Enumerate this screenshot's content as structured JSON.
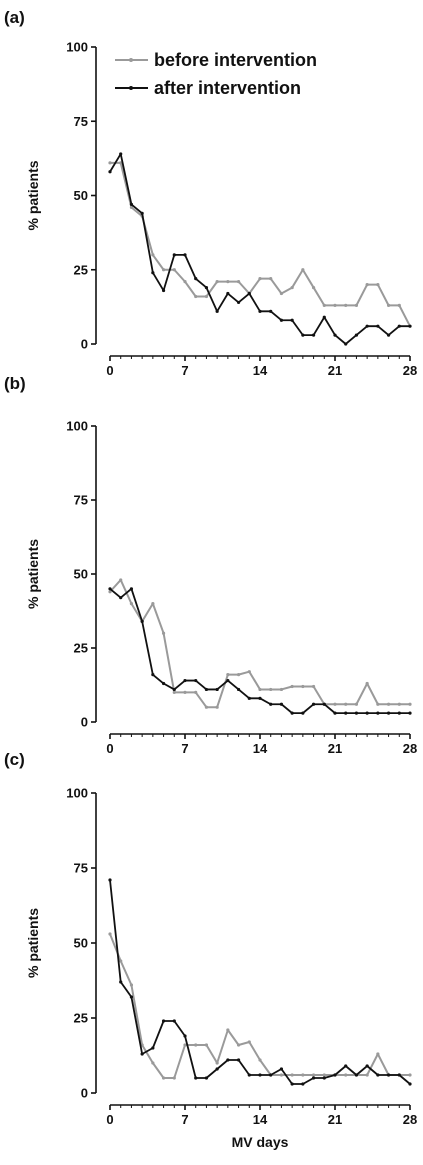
{
  "chart_data": [
    {
      "type": "line",
      "panel": "(a)",
      "ylabel": "% patients",
      "xlabel": "",
      "xlim": [
        0,
        28
      ],
      "ylim": [
        0,
        100
      ],
      "xticks": [
        "0",
        "7",
        "14",
        "21",
        "28"
      ],
      "yticks": [
        "0",
        "25",
        "50",
        "75",
        "100"
      ],
      "legend": {
        "placement": "top-right"
      },
      "x": [
        0,
        1,
        2,
        3,
        4,
        5,
        6,
        7,
        8,
        9,
        10,
        11,
        12,
        13,
        14,
        15,
        16,
        17,
        18,
        19,
        20,
        21,
        22,
        23,
        24,
        25,
        26,
        27,
        28
      ],
      "series": [
        {
          "name": "before intervention",
          "color": "#9a9a9a",
          "values": [
            61,
            61,
            46,
            43,
            30,
            25,
            25,
            21,
            16,
            16,
            21,
            21,
            21,
            17,
            22,
            22,
            17,
            19,
            25,
            19,
            13,
            13,
            13,
            13,
            20,
            20,
            13,
            13,
            6
          ]
        },
        {
          "name": "after intervention",
          "color": "#111111",
          "values": [
            58,
            64,
            47,
            44,
            24,
            18,
            30,
            30,
            22,
            19,
            11,
            17,
            14,
            17,
            11,
            11,
            8,
            8,
            3,
            3,
            9,
            3,
            0,
            3,
            6,
            6,
            3,
            6,
            6
          ]
        }
      ]
    },
    {
      "type": "line",
      "panel": "(b)",
      "ylabel": "% patients",
      "xlabel": "",
      "xlim": [
        0,
        28
      ],
      "ylim": [
        0,
        100
      ],
      "xticks": [
        "0",
        "7",
        "14",
        "21",
        "28"
      ],
      "yticks": [
        "0",
        "25",
        "50",
        "75",
        "100"
      ],
      "x": [
        0,
        1,
        2,
        3,
        4,
        5,
        6,
        7,
        8,
        9,
        10,
        11,
        12,
        13,
        14,
        15,
        16,
        17,
        18,
        19,
        20,
        21,
        22,
        23,
        24,
        25,
        26,
        27,
        28
      ],
      "series": [
        {
          "name": "before intervention",
          "color": "#9a9a9a",
          "values": [
            44,
            48,
            40,
            34,
            40,
            30,
            10,
            10,
            10,
            5,
            5,
            16,
            16,
            17,
            11,
            11,
            11,
            12,
            12,
            12,
            6,
            6,
            6,
            6,
            13,
            6,
            6,
            6,
            6
          ]
        },
        {
          "name": "after intervention",
          "color": "#111111",
          "values": [
            45,
            42,
            45,
            34,
            16,
            13,
            11,
            14,
            14,
            11,
            11,
            14,
            11,
            8,
            8,
            6,
            6,
            3,
            3,
            6,
            6,
            3,
            3,
            3,
            3,
            3,
            3,
            3,
            3
          ]
        }
      ]
    },
    {
      "type": "line",
      "panel": "(c)",
      "ylabel": "% patients",
      "xlabel": "MV days",
      "xlim": [
        0,
        28
      ],
      "ylim": [
        0,
        100
      ],
      "xticks": [
        "0",
        "7",
        "14",
        "21",
        "28"
      ],
      "yticks": [
        "0",
        "25",
        "50",
        "75",
        "100"
      ],
      "x": [
        0,
        1,
        2,
        3,
        4,
        5,
        6,
        7,
        8,
        9,
        10,
        11,
        12,
        13,
        14,
        15,
        16,
        17,
        18,
        19,
        20,
        21,
        22,
        23,
        24,
        25,
        26,
        27,
        28
      ],
      "series": [
        {
          "name": "before intervention",
          "color": "#9a9a9a",
          "values": [
            53,
            44,
            36,
            16,
            10,
            5,
            5,
            16,
            16,
            16,
            10,
            21,
            16,
            17,
            11,
            6,
            6,
            6,
            6,
            6,
            6,
            6,
            6,
            6,
            6,
            13,
            6,
            6,
            6
          ]
        },
        {
          "name": "after intervention",
          "color": "#111111",
          "values": [
            71,
            37,
            32,
            13,
            15,
            24,
            24,
            19,
            5,
            5,
            8,
            11,
            11,
            6,
            6,
            6,
            8,
            3,
            3,
            5,
            5,
            6,
            9,
            6,
            9,
            6,
            6,
            6,
            3
          ]
        }
      ]
    }
  ]
}
